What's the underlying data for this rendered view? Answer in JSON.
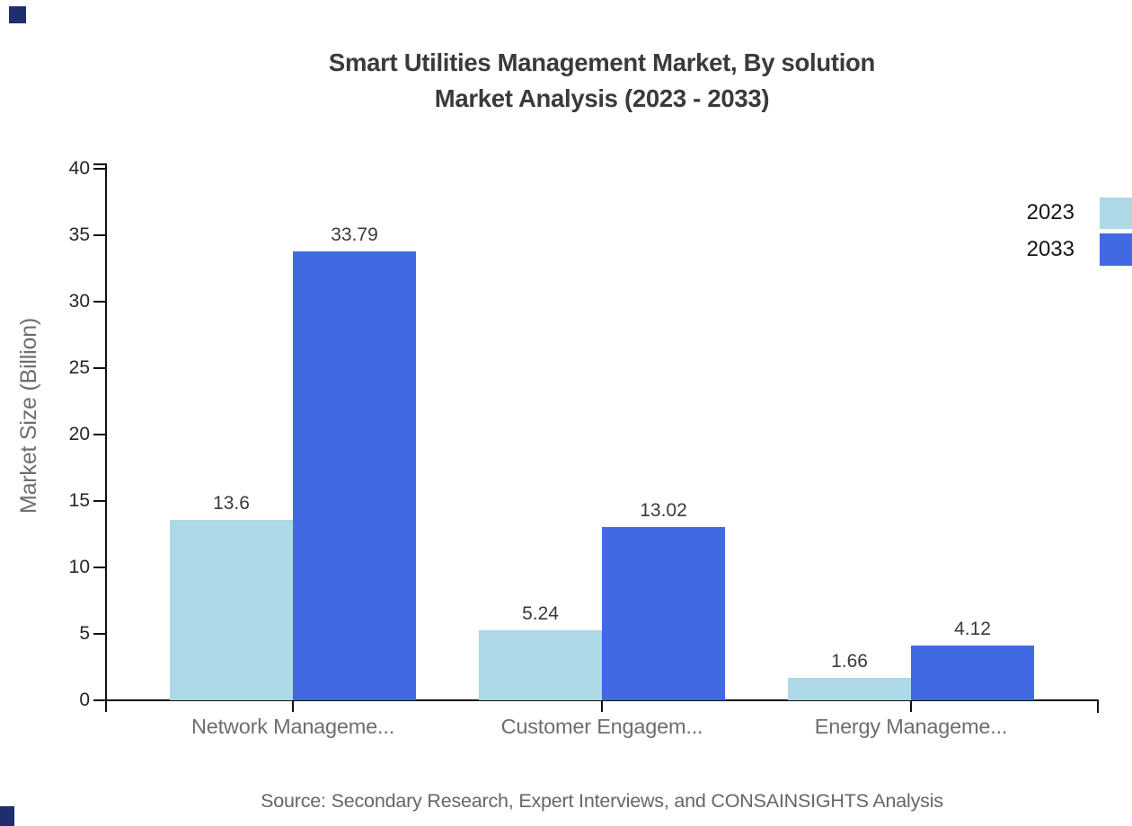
{
  "title": {
    "line1": "Smart Utilities Management Market, By solution",
    "line2": "Market Analysis (2023 - 2033)"
  },
  "y_axis": {
    "label": "Market Size (Billion)"
  },
  "source_note": "Source: Secondary Research, Expert Interviews, and CONSAINSIGHTS Analysis",
  "decorations": {
    "corner_squares_color": "#1d2f6e"
  },
  "chart_data": {
    "type": "bar",
    "title": "Smart Utilities Management Market, By solution Market Analysis (2023 - 2033)",
    "categories": [
      "Network Manageme...",
      "Customer Engagem...",
      "Energy Manageme..."
    ],
    "series": [
      {
        "name": "2023",
        "color": "#add8e6",
        "values": [
          13.6,
          5.24,
          1.66
        ],
        "value_labels": [
          "13.6",
          "5.24",
          "1.66"
        ]
      },
      {
        "name": "2033",
        "color": "#4169e1",
        "values": [
          33.79,
          13.02,
          4.12
        ],
        "value_labels": [
          "33.79",
          "13.02",
          "4.12"
        ]
      }
    ],
    "xlabel": "",
    "ylabel": "Market Size (Billion)",
    "ylim": [
      0,
      40
    ],
    "yticks": [
      0,
      5,
      10,
      15,
      20,
      25,
      30,
      35,
      40
    ],
    "grid": false,
    "legend_position": "right edge, swatches clipped by canvas edge",
    "value_labels_shown": true
  }
}
